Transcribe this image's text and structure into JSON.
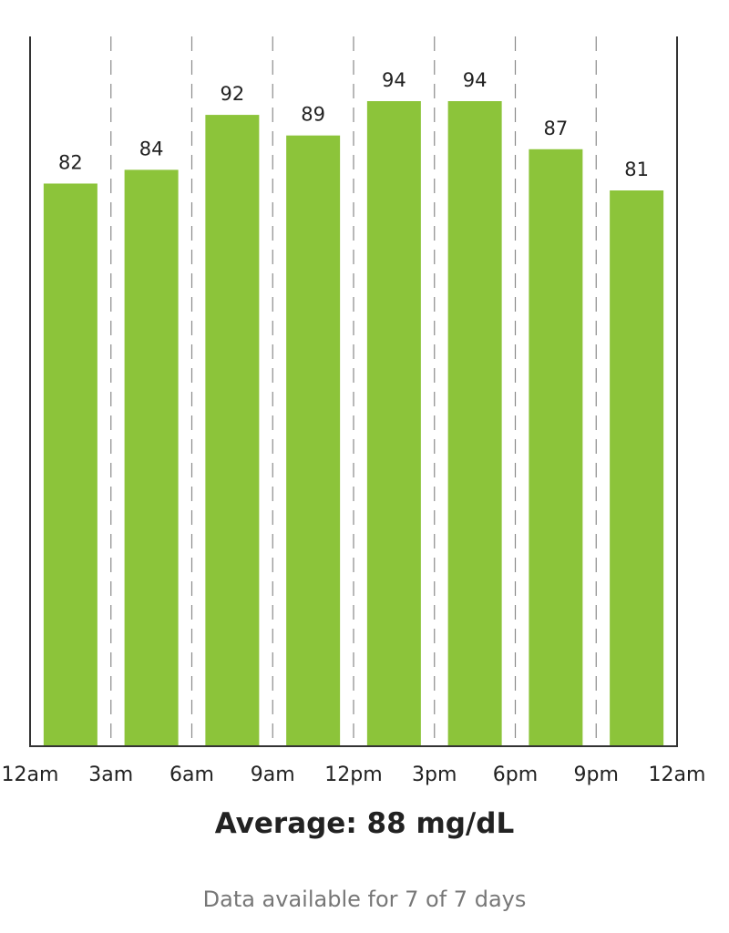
{
  "chart_data": {
    "type": "bar",
    "x_tick_labels": [
      "12am",
      "3am",
      "6am",
      "9am",
      "12pm",
      "3pm",
      "6pm",
      "9pm",
      "12am"
    ],
    "values": [
      82,
      84,
      92,
      89,
      94,
      94,
      87,
      81
    ],
    "data_labels": [
      "82",
      "84",
      "92",
      "89",
      "94",
      "94",
      "87",
      "81"
    ],
    "bar_color": "#8cc43a",
    "axis_color": "#333333",
    "grid": true,
    "grid_style": "dashed-vertical",
    "legend": "none"
  },
  "summary": {
    "average": "Average: 88 mg/dL",
    "availability": "Data available for 7 of 7 days"
  }
}
